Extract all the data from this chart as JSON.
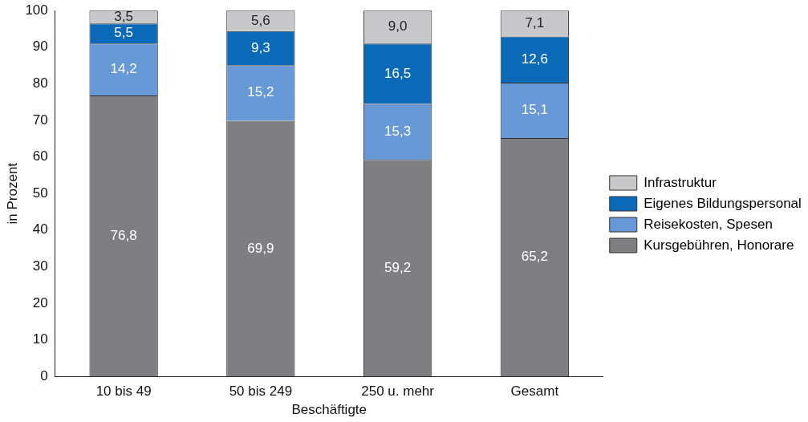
{
  "chart_data": {
    "type": "bar",
    "stacked": true,
    "ylabel": "in Prozent",
    "xlabel": "Beschäftigte",
    "categories": [
      "10 bis 49",
      "50 bis 249",
      "250 u. mehr",
      "Gesamt"
    ],
    "ylim": [
      0,
      100
    ],
    "yticks": [
      0,
      10,
      20,
      30,
      40,
      50,
      60,
      70,
      80,
      90,
      100
    ],
    "grid": false,
    "legend": "right",
    "series": [
      {
        "name": "Kursgebühren, Honorare",
        "color": "#7f7f83",
        "values": [
          76.8,
          69.9,
          59.2,
          65.2
        ],
        "value_labels": [
          "76,8",
          "69,9",
          "59,2",
          "65,2"
        ]
      },
      {
        "name": "Reisekosten, Spesen",
        "color": "#6699d6",
        "values": [
          14.2,
          15.2,
          15.3,
          15.1
        ],
        "value_labels": [
          "14,2",
          "15,2",
          "15,3",
          "15,1"
        ]
      },
      {
        "name": "Eigenes Bildungspersonal",
        "color": "#0a6ab8",
        "values": [
          5.5,
          9.3,
          16.5,
          12.6
        ],
        "value_labels": [
          "5,5",
          "9,3",
          "16,5",
          "12,6"
        ]
      },
      {
        "name": "Infrastruktur",
        "color": "#c8c8cb",
        "values": [
          3.5,
          5.6,
          9.0,
          7.1
        ],
        "value_labels": [
          "3,5",
          "5,6",
          "9,0",
          "7,1"
        ]
      }
    ]
  }
}
